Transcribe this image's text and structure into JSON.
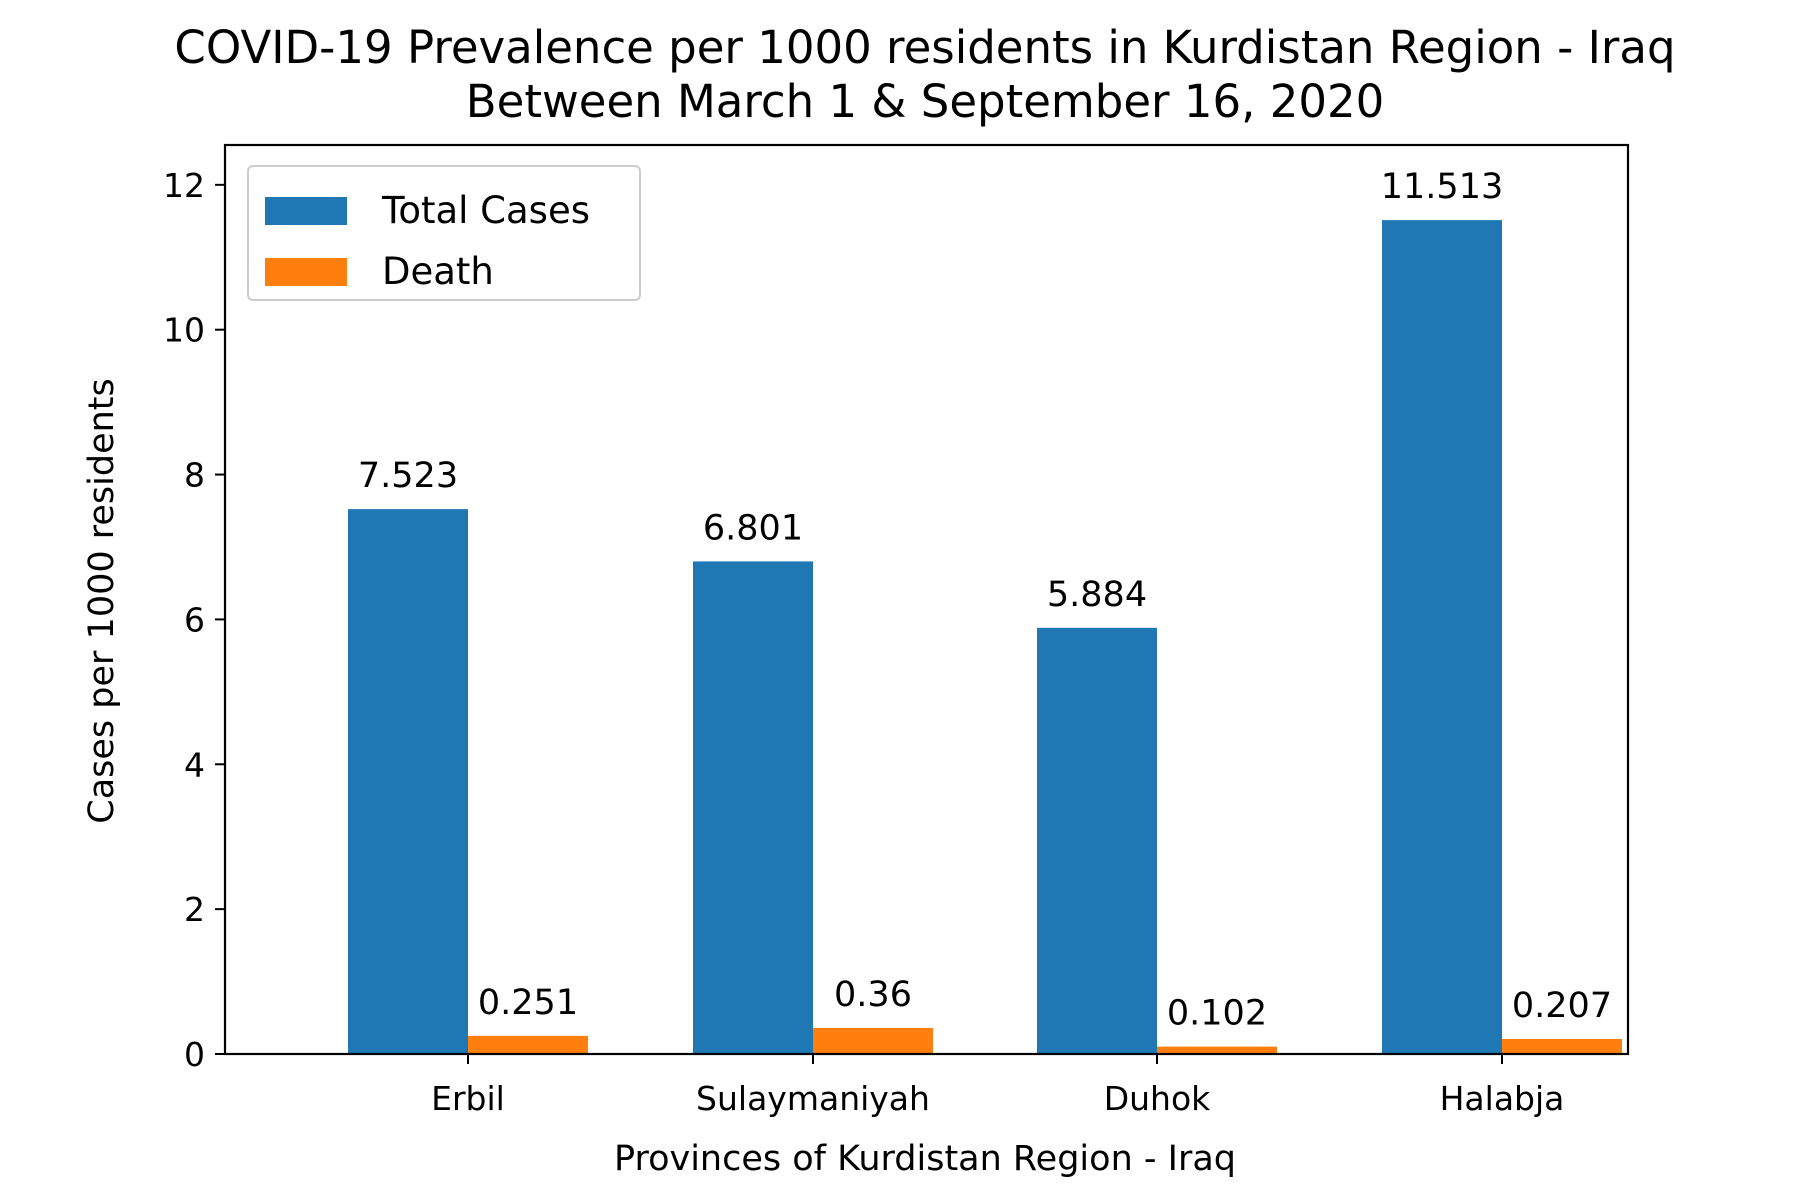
{
  "chart_data": {
    "type": "bar",
    "title_lines": [
      "COVID-19 Prevalence per 1000 residents in Kurdistan Region - Iraq",
      "Between March 1 & September 16, 2020"
    ],
    "xlabel": "Provinces of Kurdistan Region - Iraq",
    "ylabel": "Cases per 1000 residents",
    "categories": [
      "Erbil",
      "Sulaymaniyah",
      "Duhok",
      "Halabja"
    ],
    "series": [
      {
        "name": "Total Cases",
        "color": "#1f77b4",
        "values": [
          7.523,
          6.801,
          5.884,
          11.513
        ],
        "labels": [
          "7.523",
          "6.801",
          "5.884",
          "11.513"
        ]
      },
      {
        "name": "Death",
        "color": "#ff7f0e",
        "values": [
          0.251,
          0.36,
          0.102,
          0.207
        ],
        "labels": [
          "0.251",
          "0.36",
          "0.102",
          "0.207"
        ]
      }
    ],
    "ylim": [
      0,
      12.55
    ],
    "yticks": [
      0,
      2,
      4,
      6,
      8,
      10,
      12
    ],
    "ytick_labels": [
      "0",
      "2",
      "4",
      "6",
      "8",
      "10",
      "12"
    ],
    "grid": false,
    "legend_position": "top-left"
  }
}
